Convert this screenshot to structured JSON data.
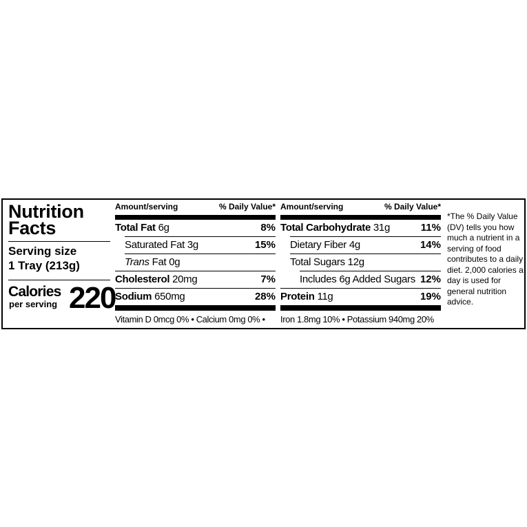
{
  "title": [
    "Nutrition",
    "Facts"
  ],
  "serving": {
    "label": "Serving size",
    "value": "1 Tray (213g)"
  },
  "calories": {
    "label": "Calories",
    "sub": "per serving",
    "value": "220"
  },
  "header": {
    "amount": "Amount/serving",
    "dv": "% Daily Value*"
  },
  "left_column": [
    {
      "name": "Total Fat",
      "amount": "6g",
      "dv": "8%",
      "bold": true,
      "indent": 0
    },
    {
      "name": "Saturated Fat",
      "amount": "3g",
      "dv": "15%",
      "bold": false,
      "indent": 1
    },
    {
      "name": "Trans",
      "name_suffix": "Fat",
      "amount": "0g",
      "dv": "",
      "bold": false,
      "indent": 1,
      "italic": true
    },
    {
      "name": "Cholesterol",
      "amount": "20mg",
      "dv": "7%",
      "bold": true,
      "indent": 0
    },
    {
      "name": "Sodium",
      "amount": "650mg",
      "dv": "28%",
      "bold": true,
      "indent": 0
    }
  ],
  "right_column": [
    {
      "name": "Total Carbohydrate",
      "amount": "31g",
      "dv": "11%",
      "bold": true,
      "indent": 0
    },
    {
      "name": "Dietary Fiber",
      "amount": "4g",
      "dv": "14%",
      "bold": false,
      "indent": 1
    },
    {
      "name": "Total Sugars",
      "amount": "12g",
      "dv": "",
      "bold": false,
      "indent": 1
    },
    {
      "name": "Includes 6g Added Sugars",
      "amount": "",
      "dv": "12%",
      "bold": false,
      "indent": 2
    },
    {
      "name": "Protein",
      "amount": "11g",
      "dv": "19%",
      "bold": true,
      "indent": 0
    }
  ],
  "vitamins_left": "Vitamin D 0mcg 0% • Calcium 0mg 0% •",
  "vitamins_right": "Iron 1.8mg 10% • Potassium 940mg 20%",
  "footnote": "*The % Daily Value (DV) tells you how much a nutrient in a serving of food contributes to a daily diet. 2,000 calories a day is used for general nutrition advice."
}
